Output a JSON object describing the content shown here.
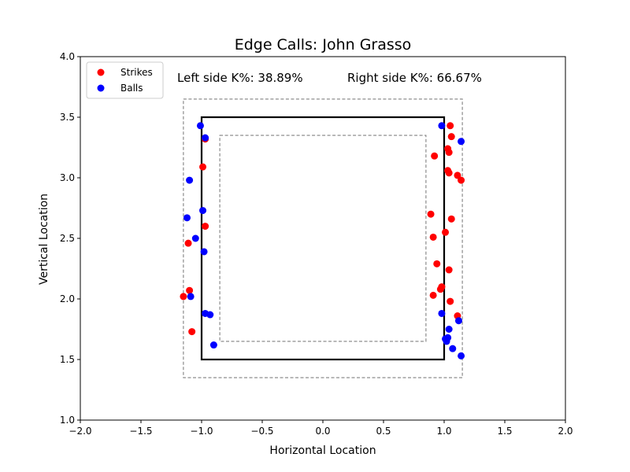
{
  "chart_data": {
    "type": "scatter",
    "title": "Edge Calls: John Grasso",
    "xlabel": "Horizontal Location",
    "ylabel": "Vertical Location",
    "xlim": [
      -2.0,
      2.0
    ],
    "ylim": [
      1.0,
      4.0
    ],
    "xticks": [
      "−2.0",
      "−1.5",
      "−1.0",
      "−0.5",
      "0.0",
      "0.5",
      "1.0",
      "1.5",
      "2.0"
    ],
    "yticks": [
      "1.0",
      "1.5",
      "2.0",
      "2.5",
      "3.0",
      "3.5",
      "4.0"
    ],
    "xtick_values": [
      -2.0,
      -1.5,
      -1.0,
      -0.5,
      0.0,
      0.5,
      1.0,
      1.5,
      2.0
    ],
    "ytick_values": [
      1.0,
      1.5,
      2.0,
      2.5,
      3.0,
      3.5,
      4.0
    ],
    "grid": false,
    "legend_placement": "top-left",
    "annotations": {
      "left": "Left side K%: 38.89%",
      "right": "Right side K%: 66.67%"
    },
    "zone": {
      "strike_zone": {
        "x": [
          -1.0,
          1.0
        ],
        "y": [
          1.5,
          3.5
        ]
      },
      "outer_edge": {
        "x": [
          -1.15,
          1.15
        ],
        "y": [
          1.35,
          3.65
        ]
      },
      "inner_edge": {
        "x": [
          -0.85,
          0.85
        ],
        "y": [
          1.65,
          3.35
        ]
      }
    },
    "series": [
      {
        "name": "Strikes",
        "color": "#ff0000",
        "points": [
          [
            -0.97,
            3.32
          ],
          [
            -0.99,
            3.09
          ],
          [
            -0.97,
            2.6
          ],
          [
            -1.11,
            2.46
          ],
          [
            -1.1,
            2.07
          ],
          [
            -1.15,
            2.02
          ],
          [
            -1.08,
            1.73
          ],
          [
            1.05,
            3.43
          ],
          [
            1.06,
            3.34
          ],
          [
            1.03,
            3.24
          ],
          [
            1.04,
            3.21
          ],
          [
            0.92,
            3.18
          ],
          [
            1.03,
            3.06
          ],
          [
            1.04,
            3.04
          ],
          [
            1.11,
            3.02
          ],
          [
            1.14,
            2.98
          ],
          [
            0.89,
            2.7
          ],
          [
            1.06,
            2.66
          ],
          [
            1.01,
            2.55
          ],
          [
            0.91,
            2.51
          ],
          [
            0.94,
            2.29
          ],
          [
            1.04,
            2.24
          ],
          [
            0.98,
            2.1
          ],
          [
            0.97,
            2.08
          ],
          [
            0.91,
            2.03
          ],
          [
            1.05,
            1.98
          ],
          [
            1.11,
            1.86
          ]
        ]
      },
      {
        "name": "Balls",
        "color": "#0000ff",
        "points": [
          [
            -1.01,
            3.43
          ],
          [
            -0.97,
            3.33
          ],
          [
            -1.1,
            2.98
          ],
          [
            -0.99,
            2.73
          ],
          [
            -1.12,
            2.67
          ],
          [
            -1.05,
            2.5
          ],
          [
            -0.98,
            2.39
          ],
          [
            -1.09,
            2.02
          ],
          [
            -0.97,
            1.88
          ],
          [
            -0.93,
            1.87
          ],
          [
            -0.9,
            1.62
          ],
          [
            0.98,
            3.43
          ],
          [
            1.14,
            3.3
          ],
          [
            0.98,
            1.88
          ],
          [
            1.12,
            1.82
          ],
          [
            1.04,
            1.75
          ],
          [
            1.03,
            1.68
          ],
          [
            1.01,
            1.67
          ],
          [
            1.02,
            1.65
          ],
          [
            1.07,
            1.59
          ],
          [
            1.14,
            1.53
          ]
        ]
      }
    ]
  }
}
